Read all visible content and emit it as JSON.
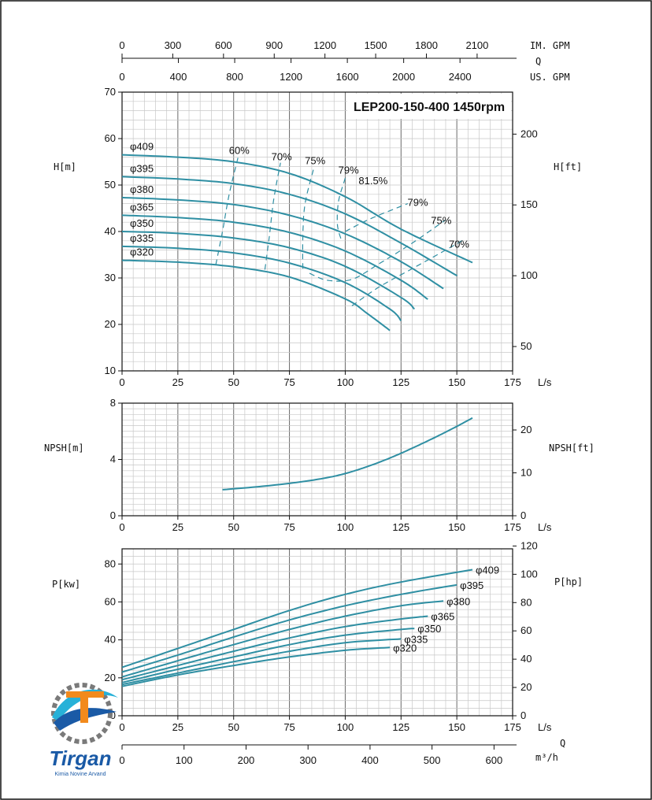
{
  "chart_data": {
    "type": "line",
    "title": "LEP200-150-400 1450rpm",
    "colors": {
      "curve": "#2f8fa3",
      "grid": "#6a6a6a",
      "minor_grid": "#c8c8c8",
      "frame": "#111111"
    },
    "flow_x": {
      "unit": "L/s",
      "ticks": [
        0,
        25,
        50,
        75,
        100,
        125,
        150,
        175
      ],
      "range": [
        0,
        175
      ]
    },
    "top_axes": [
      {
        "label": "IM. GPM",
        "ticks": [
          0,
          300,
          600,
          900,
          1200,
          1500,
          1800,
          2100
        ],
        "factor": 13.2
      },
      {
        "label": "US. GPM",
        "ticks": [
          0,
          400,
          800,
          1200,
          1600,
          2000,
          2400
        ],
        "factor": 15.85
      }
    ],
    "top_q_label": "Q",
    "bottom_axis": {
      "label": "m³/h",
      "q_label": "Q",
      "ticks": [
        0,
        100,
        200,
        300,
        400,
        500,
        600
      ],
      "factor": 3.6
    },
    "head_panel": {
      "ylabel_left": "H[m]",
      "ylabel_right": "H[ft]",
      "ylim": [
        10,
        70
      ],
      "yticks": [
        10,
        20,
        30,
        40,
        50,
        60,
        70
      ],
      "right_ticks": [
        50,
        100,
        150,
        200
      ],
      "ft_per_m": 3.2808,
      "series": [
        {
          "name": "φ409",
          "x": [
            0,
            25,
            50,
            75,
            100,
            125,
            157
          ],
          "y": [
            56.5,
            56.0,
            55.0,
            52.5,
            47.5,
            40.5,
            33.3
          ]
        },
        {
          "name": "φ395",
          "x": [
            0,
            25,
            50,
            75,
            100,
            125,
            150
          ],
          "y": [
            51.8,
            51.3,
            50.3,
            48.0,
            43.8,
            37.5,
            30.5
          ]
        },
        {
          "name": "φ380",
          "x": [
            0,
            25,
            50,
            75,
            100,
            125,
            144
          ],
          "y": [
            47.3,
            46.8,
            45.8,
            43.5,
            39.5,
            33.5,
            27.7
          ]
        },
        {
          "name": "φ365",
          "x": [
            0,
            25,
            50,
            75,
            100,
            125,
            137
          ],
          "y": [
            43.5,
            43.0,
            42.0,
            39.8,
            35.8,
            29.5,
            25.4
          ]
        },
        {
          "name": "φ350",
          "x": [
            0,
            25,
            50,
            75,
            100,
            125,
            131
          ],
          "y": [
            40.0,
            39.6,
            38.6,
            36.5,
            32.5,
            25.8,
            23.3
          ]
        },
        {
          "name": "φ335",
          "x": [
            0,
            25,
            50,
            75,
            100,
            120,
            125
          ],
          "y": [
            36.8,
            36.4,
            35.4,
            33.2,
            29.0,
            23.3,
            20.8
          ]
        },
        {
          "name": "φ320",
          "x": [
            0,
            25,
            50,
            75,
            100,
            110,
            120
          ],
          "y": [
            33.8,
            33.4,
            32.4,
            30.2,
            25.5,
            22.3,
            18.7
          ]
        }
      ],
      "efficiency": [
        {
          "label": "60%",
          "x": [
            42,
            45,
            48,
            52
          ],
          "y": [
            32.8,
            40,
            48,
            56
          ]
        },
        {
          "label": "70%",
          "x": [
            64,
            66,
            68,
            71
          ],
          "y": [
            31.8,
            39,
            47,
            54.8
          ]
        },
        {
          "label": "75%",
          "x": [
            81,
            81,
            82,
            86
          ],
          "y": [
            32,
            39,
            46,
            53.8
          ]
        },
        {
          "label": "79%",
          "x": [
            98,
            96.5,
            97,
            100
          ],
          "y": [
            38.5,
            41.5,
            46.5,
            51.5
          ]
        },
        {
          "label": "79%",
          "x": [
            100,
            108,
            115,
            128
          ],
          "y": [
            40,
            42,
            43.5,
            46
          ]
        },
        {
          "label": "75%",
          "x": [
            84,
            92,
            103,
            115,
            130,
            145
          ],
          "y": [
            31,
            29.5,
            29.7,
            33,
            37.5,
            42.5
          ]
        },
        {
          "label": "70%",
          "x": [
            103,
            115,
            130,
            145,
            153
          ],
          "y": [
            24,
            28,
            32,
            36,
            38.2
          ]
        }
      ],
      "efficiency_labels": [
        {
          "text": "60%",
          "x": 52.5,
          "y": 56.7
        },
        {
          "text": "70%",
          "x": 71.5,
          "y": 55.3
        },
        {
          "text": "75%",
          "x": 86.5,
          "y": 54.5
        },
        {
          "text": "79%",
          "x": 101.5,
          "y": 52.5
        },
        {
          "text": "81.5%",
          "x": 112.5,
          "y": 50.2
        },
        {
          "text": "79%",
          "x": 132.5,
          "y": 45.5
        },
        {
          "text": "75%",
          "x": 143,
          "y": 41.6
        },
        {
          "text": "70%",
          "x": 151,
          "y": 36.5
        }
      ]
    },
    "npsh_panel": {
      "ylabel_left": "NPSH[m]",
      "ylabel_right": "NPSH[ft]",
      "ylim": [
        0,
        8
      ],
      "yticks": [
        0,
        4,
        8
      ],
      "right_ticks": [
        0,
        10,
        20
      ],
      "series": [
        {
          "name": "NPSH",
          "x": [
            45,
            60,
            75,
            90,
            100,
            110,
            120,
            130,
            140,
            150,
            157
          ],
          "y": [
            1.85,
            2.05,
            2.3,
            2.65,
            3.0,
            3.5,
            4.1,
            4.8,
            5.55,
            6.35,
            6.95
          ]
        }
      ]
    },
    "power_panel": {
      "ylabel_left": "P[kw]",
      "ylabel_right": "P[hp]",
      "ylim": [
        0,
        88
      ],
      "yticks": [
        0,
        20,
        40,
        60,
        80
      ],
      "right_ticks": [
        0,
        20,
        40,
        60,
        80,
        100,
        120
      ],
      "hp_per_kw": 1.341,
      "series": [
        {
          "name": "φ409",
          "x": [
            0,
            25,
            50,
            75,
            100,
            125,
            157
          ],
          "y": [
            25.5,
            35.5,
            45.5,
            55.5,
            64.0,
            70.5,
            77.0
          ]
        },
        {
          "name": "φ395",
          "x": [
            0,
            25,
            50,
            75,
            100,
            125,
            150
          ],
          "y": [
            23.0,
            32.0,
            41.5,
            50.5,
            58.0,
            64.0,
            69.0
          ]
        },
        {
          "name": "φ380",
          "x": [
            0,
            25,
            50,
            75,
            100,
            125,
            144
          ],
          "y": [
            20.5,
            29.0,
            37.5,
            45.5,
            52.5,
            58.0,
            60.5
          ]
        },
        {
          "name": "φ365",
          "x": [
            0,
            25,
            50,
            75,
            100,
            125,
            137
          ],
          "y": [
            19.0,
            26.5,
            34.0,
            41.0,
            47.0,
            51.0,
            52.5
          ]
        },
        {
          "name": "φ350",
          "x": [
            0,
            25,
            50,
            75,
            100,
            125,
            131
          ],
          "y": [
            17.5,
            24.5,
            31.0,
            37.5,
            42.5,
            45.5,
            46.0
          ]
        },
        {
          "name": "φ335",
          "x": [
            0,
            25,
            50,
            75,
            100,
            125
          ],
          "y": [
            16.5,
            22.5,
            28.5,
            34.0,
            38.5,
            40.5
          ]
        },
        {
          "name": "φ320",
          "x": [
            0,
            25,
            50,
            75,
            100,
            120
          ],
          "y": [
            15.5,
            21.5,
            26.5,
            31.0,
            34.5,
            36.0
          ]
        }
      ]
    }
  },
  "logo": {
    "name": "Tirgan",
    "subtitle": "Kimia Novine Arvand",
    "colors": {
      "blue": "#1a5aa6",
      "orange": "#f28a1c",
      "teal": "#27b1d8",
      "gray": "#7a7a7a"
    }
  }
}
